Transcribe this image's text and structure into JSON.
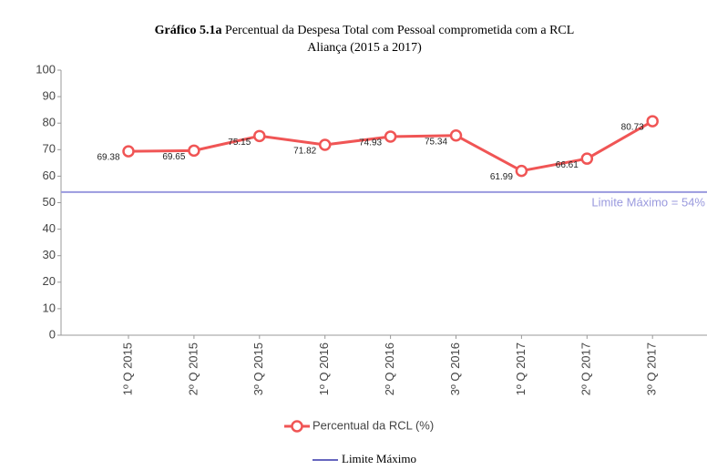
{
  "chart_data": {
    "type": "line",
    "title_bold": "Gráfico 5.1a",
    "title": "Percentual da Despesa Total com Pessoal comprometida com a RCL",
    "subtitle": "Aliança (2015 a 2017)",
    "categories": [
      "1º Q 2015",
      "2º Q 2015",
      "3º Q 2015",
      "1º Q 2016",
      "2º Q 2016",
      "3º Q 2016",
      "1º Q 2017",
      "2º Q 2017",
      "3º Q 2017"
    ],
    "series": [
      {
        "name": "Percentual da RCL (%)",
        "color": "#f05555",
        "values": [
          69.38,
          69.65,
          75.15,
          71.82,
          74.93,
          75.34,
          61.99,
          66.61,
          80.73
        ]
      }
    ],
    "reference_line": {
      "name": "Limite Máximo",
      "value": 54,
      "label": "Limite Máximo = 54%",
      "color": "#9a9ade"
    },
    "ylim": [
      0,
      100
    ],
    "yticks": [
      0,
      10,
      20,
      30,
      40,
      50,
      60,
      70,
      80,
      90,
      100
    ],
    "grid": false
  }
}
